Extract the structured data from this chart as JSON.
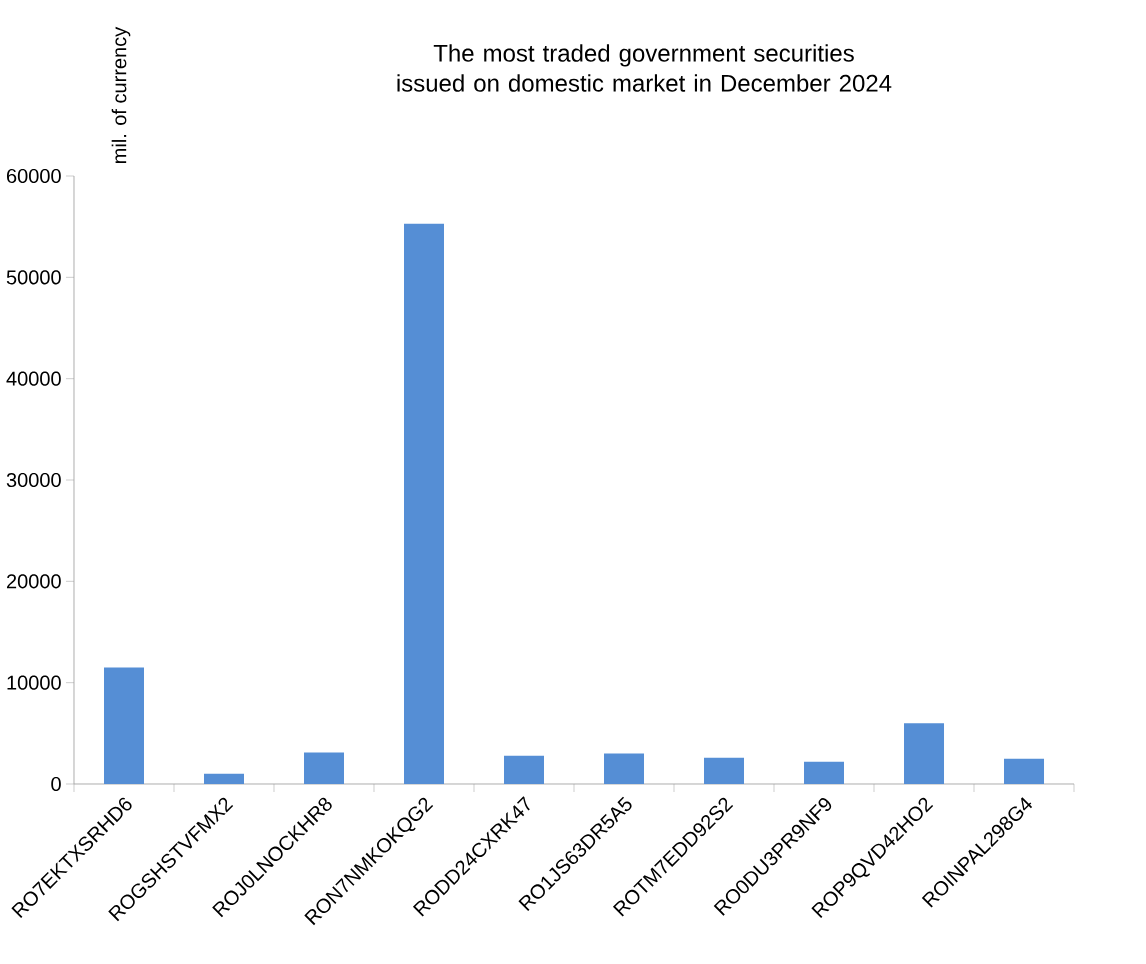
{
  "chart_data": {
    "type": "bar",
    "title": "The most  traded government securities issued on domestic market in December 2024",
    "ylabel": "mil. of currency",
    "categories": [
      "RO7EKTXSRHD6",
      "ROGSHSTVFMX2",
      "ROJ0LNOCKHR8",
      "RON7NMKOKQG2",
      "RODD24CXRK47",
      "RO1JS63DR5A5",
      "ROTM7EDD92S2",
      "RO0DU3PR9NF9",
      "ROP9QVD42HO2",
      "ROINPAL298G4"
    ],
    "values": [
      11500,
      1000,
      3100,
      55300,
      2800,
      3000,
      2600,
      2200,
      6000,
      2500
    ],
    "color": "#558ed5",
    "ylim": [
      0,
      60000
    ],
    "yticks": [
      0,
      10000,
      20000,
      30000,
      40000,
      50000,
      60000
    ],
    "grid": false
  }
}
